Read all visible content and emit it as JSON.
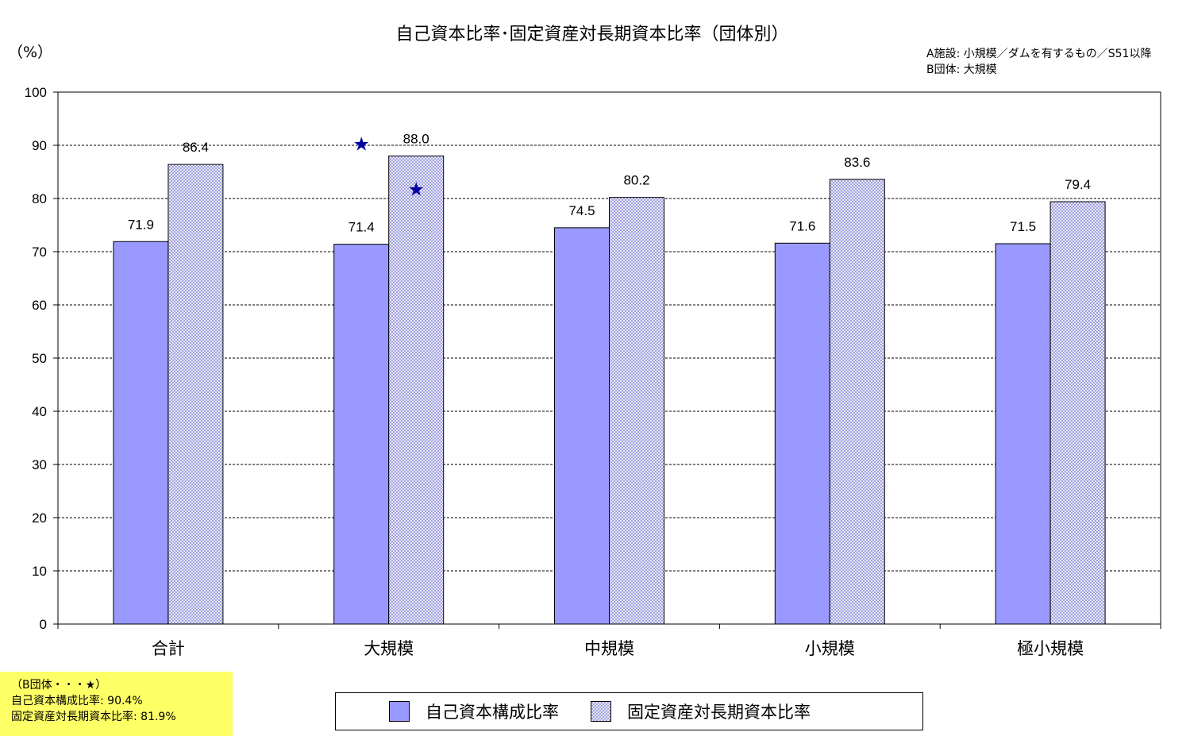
{
  "chart_data": {
    "type": "bar",
    "title": "自己資本比率･固定資産対長期資本比率（団体別）",
    "unit_label": "（%）",
    "notes": [
      "A施設: 小規模／ダムを有するもの／S51以降",
      "B団体: 大規模"
    ],
    "categories": [
      "合計",
      "大規模",
      "中規模",
      "小規模",
      "極小規模"
    ],
    "series": [
      {
        "name": "自己資本構成比率",
        "values": [
          71.9,
          71.4,
          74.5,
          71.6,
          71.5
        ],
        "color": "#9999ff",
        "pattern": "solid"
      },
      {
        "name": "固定資産対長期資本比率",
        "values": [
          86.4,
          88.0,
          80.2,
          83.6,
          79.4
        ],
        "color": "#c8c8f0",
        "pattern": "crosshatch"
      }
    ],
    "ylim": [
      0,
      100
    ],
    "yticks": [
      0,
      10,
      20,
      30,
      40,
      50,
      60,
      70,
      80,
      90,
      100
    ],
    "gridlines": "dashed-horizontal",
    "legend_position": "bottom",
    "markers": [
      {
        "category": "大規模",
        "series": "自己資本構成比率",
        "value": 90.4,
        "symbol": "★",
        "color": "#0000a0"
      },
      {
        "category": "大規模",
        "series": "固定資産対長期資本比率",
        "value": 81.9,
        "symbol": "★",
        "color": "#0000a0"
      }
    ]
  },
  "footnote": {
    "line1": "（B団体・・・★）",
    "line2": "自己資本構成比率: 90.4%",
    "line3": "固定資産対長期資本比率: 81.9%"
  }
}
